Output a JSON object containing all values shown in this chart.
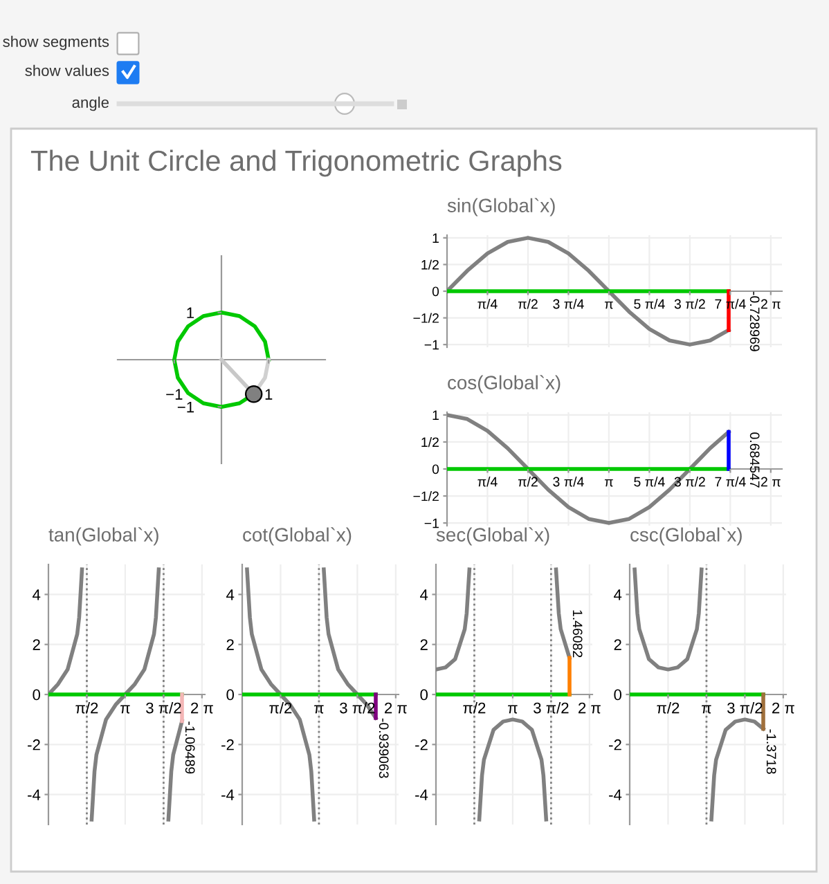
{
  "chart_data": [
    {
      "type": "other",
      "annotations": [
        "show segments",
        "show values",
        "angle"
      ]
    },
    {
      "type": "line",
      "title": "The Unit Circle and Trigonometric Graphs",
      "xlim": [
        -2.2,
        2.2
      ],
      "ylim": [
        -2.2,
        2.2
      ],
      "xticks": [
        {
          "value": -1,
          "label": "−1"
        },
        1
      ],
      "yticks": [
        {
          "value": -1,
          "label": "−1"
        },
        1
      ],
      "grid": false,
      "series": [
        {
          "color": "#00c800",
          "x": [
            1,
            0.924,
            0.707,
            0.383,
            0,
            -0.383,
            -0.707,
            -0.924,
            -1,
            -0.924,
            -0.707,
            -0.383,
            0,
            0.383,
            0.685
          ],
          "values": [
            0,
            0.383,
            0.707,
            0.924,
            1,
            0.924,
            0.707,
            0.383,
            0,
            -0.383,
            -0.707,
            -0.924,
            -1,
            -0.924,
            -0.729
          ]
        },
        {
          "color": "#d0d0d0",
          "x": [
            0.685,
            0.924,
            1
          ],
          "values": [
            -0.729,
            -0.383,
            0
          ]
        },
        {
          "color": "#c8c8c8",
          "x": [
            0,
            0.685
          ],
          "values": [
            0,
            -0.729
          ]
        },
        {
          "type": "scatter",
          "marker": "circle",
          "color": "#808080",
          "x": [
            0.685
          ],
          "values": [
            -0.729
          ]
        }
      ]
    },
    {
      "type": "line",
      "title": "sin(Global`x)",
      "xlim": [
        0,
        6.5
      ],
      "ylim": [
        -1.05,
        1.05
      ],
      "grid": true,
      "xticks": [
        {
          "value": 0.7854,
          "label": "π/4"
        },
        {
          "value": 1.5708,
          "label": "π/2"
        },
        {
          "value": 2.3562,
          "label": "3 π/4"
        },
        {
          "value": 3.1416,
          "label": "π"
        },
        {
          "value": 3.927,
          "label": "5 π/4"
        },
        {
          "value": 4.7124,
          "label": "3 π/2"
        },
        {
          "value": 5.4978,
          "label": "7 π/4"
        },
        {
          "value": 6.2832,
          "label": "2 π"
        }
      ],
      "yticks": [
        {
          "value": -1,
          "label": "−1"
        },
        {
          "value": -0.5,
          "label": "−1/2"
        },
        0,
        {
          "value": 0.5,
          "label": "1/2"
        },
        1
      ],
      "series": [
        {
          "color": "#808080",
          "x": [
            0,
            0.3927,
            0.7854,
            1.1781,
            1.5708,
            1.9635,
            2.3562,
            2.7489,
            3.1416,
            3.5343,
            3.927,
            4.3197,
            4.7124,
            5.1051,
            5.466
          ],
          "values": [
            0,
            0.383,
            0.707,
            0.924,
            1,
            0.924,
            0.707,
            0.383,
            0,
            -0.383,
            -0.707,
            -0.924,
            -1,
            -0.924,
            -0.729
          ]
        },
        {
          "color": "#00c800",
          "x": [
            0,
            5.466
          ],
          "values": [
            0,
            0
          ]
        },
        {
          "color": "#ff0000",
          "x": [
            5.466,
            5.466
          ],
          "values": [
            0,
            -0.728969
          ],
          "value_labels": [
            null,
            "-0.728969"
          ]
        }
      ]
    },
    {
      "type": "line",
      "title": "cos(Global`x)",
      "xlim": [
        0,
        6.5
      ],
      "ylim": [
        -1.05,
        1.05
      ],
      "grid": true,
      "xticks": [
        {
          "value": 0.7854,
          "label": "π/4"
        },
        {
          "value": 1.5708,
          "label": "π/2"
        },
        {
          "value": 2.3562,
          "label": "3 π/4"
        },
        {
          "value": 3.1416,
          "label": "π"
        },
        {
          "value": 3.927,
          "label": "5 π/4"
        },
        {
          "value": 4.7124,
          "label": "3 π/2"
        },
        {
          "value": 5.4978,
          "label": "7 π/4"
        },
        {
          "value": 6.2832,
          "label": "2 π"
        }
      ],
      "yticks": [
        {
          "value": -1,
          "label": "−1"
        },
        {
          "value": -0.5,
          "label": "−1/2"
        },
        0,
        {
          "value": 0.5,
          "label": "1/2"
        },
        1
      ],
      "series": [
        {
          "color": "#808080",
          "x": [
            0,
            0.3927,
            0.7854,
            1.1781,
            1.5708,
            1.9635,
            2.3562,
            2.7489,
            3.1416,
            3.5343,
            3.927,
            4.3197,
            4.7124,
            5.1051,
            5.466
          ],
          "values": [
            1,
            0.924,
            0.707,
            0.383,
            0,
            -0.383,
            -0.707,
            -0.924,
            -1,
            -0.924,
            -0.707,
            -0.383,
            0,
            0.383,
            0.685
          ]
        },
        {
          "color": "#00c800",
          "x": [
            0,
            5.466
          ],
          "values": [
            0,
            0
          ]
        },
        {
          "color": "#0000ff",
          "x": [
            5.466,
            5.466
          ],
          "values": [
            0,
            0.684547
          ],
          "value_labels": [
            null,
            "0.684547"
          ]
        }
      ]
    },
    {
      "type": "line",
      "title": "tan(Global`x)",
      "xlim": [
        0,
        6.4
      ],
      "ylim": [
        -5.2,
        5.2
      ],
      "grid": true,
      "xticks": [
        {
          "value": 1.5708,
          "label": "π/2"
        },
        {
          "value": 3.1416,
          "label": "π"
        },
        {
          "value": 4.7124,
          "label": "3 π/2"
        },
        {
          "value": 6.2832,
          "label": "2 π"
        }
      ],
      "yticks": [
        -4,
        -2,
        0,
        2,
        4
      ],
      "ref_lines": [
        {
          "axis": "x",
          "value": 1.5708,
          "color": "#808080",
          "line_style": "dotted"
        },
        {
          "axis": "x",
          "value": 4.7124,
          "color": "#808080",
          "line_style": "dotted"
        }
      ],
      "series": [
        {
          "color": "#808080",
          "x": [
            0,
            0.3927,
            0.7854,
            1.1781,
            1.2566,
            1.3734,
            1.5708,
            1.7682,
            1.885,
            1.9635,
            2.3562,
            2.7489,
            3.1416,
            3.5343,
            3.927,
            4.3197,
            4.398,
            4.515,
            4.7124,
            4.9098,
            5.027,
            5.1051,
            5.466
          ],
          "values": [
            0,
            0.414,
            1,
            2.414,
            3.078,
            5,
            null,
            -5,
            -3.078,
            -2.414,
            -1,
            -0.414,
            0,
            0.414,
            1,
            2.414,
            3.078,
            5,
            null,
            -5,
            -3.078,
            -2.414,
            -1.065
          ]
        },
        {
          "color": "#00c800",
          "x": [
            0,
            5.466
          ],
          "values": [
            0,
            0
          ]
        },
        {
          "color": "#f4b6b6",
          "x": [
            5.466,
            5.466
          ],
          "values": [
            0,
            -1.06489
          ],
          "value_labels": [
            null,
            "-1.06489"
          ]
        }
      ]
    },
    {
      "type": "line",
      "title": "cot(Global`x)",
      "xlim": [
        0,
        6.4
      ],
      "ylim": [
        -5.2,
        5.2
      ],
      "grid": true,
      "xticks": [
        {
          "value": 1.5708,
          "label": "π/2"
        },
        {
          "value": 3.1416,
          "label": "π"
        },
        {
          "value": 4.7124,
          "label": "3 π/2"
        },
        {
          "value": 6.2832,
          "label": "2 π"
        }
      ],
      "yticks": [
        -4,
        -2,
        0,
        2,
        4
      ],
      "ref_lines": [
        {
          "axis": "x",
          "value": 3.1416,
          "color": "#808080",
          "line_style": "dotted"
        }
      ],
      "series": [
        {
          "color": "#808080",
          "x": [
            0.1974,
            0.3142,
            0.3927,
            0.7854,
            1.1781,
            1.5708,
            1.9635,
            2.3562,
            2.7489,
            2.8274,
            2.9442,
            3.1416,
            3.339,
            3.4558,
            3.5343,
            3.927,
            4.3197,
            4.7124,
            5.1051,
            5.466
          ],
          "values": [
            5,
            3.078,
            2.414,
            1,
            0.414,
            0,
            -0.414,
            -1,
            -2.414,
            -3.078,
            -5,
            null,
            5,
            3.078,
            2.414,
            1,
            0.414,
            0,
            -0.414,
            -0.939
          ]
        },
        {
          "color": "#00c800",
          "x": [
            0,
            5.466
          ],
          "values": [
            0,
            0
          ]
        },
        {
          "color": "#800080",
          "x": [
            5.466,
            5.466
          ],
          "values": [
            0,
            -0.939063
          ],
          "value_labels": [
            null,
            "-0.939063"
          ]
        }
      ]
    },
    {
      "type": "line",
      "title": "sec(Global`x)",
      "xlim": [
        0,
        6.4
      ],
      "ylim": [
        -5.2,
        5.2
      ],
      "grid": true,
      "xticks": [
        {
          "value": 1.5708,
          "label": "π/2"
        },
        {
          "value": 3.1416,
          "label": "π"
        },
        {
          "value": 4.7124,
          "label": "3 π/2"
        },
        {
          "value": 6.2832,
          "label": "2 π"
        }
      ],
      "yticks": [
        -4,
        -2,
        0,
        2,
        4
      ],
      "ref_lines": [
        {
          "axis": "x",
          "value": 1.5708,
          "color": "#808080",
          "line_style": "dotted"
        },
        {
          "axis": "x",
          "value": 4.7124,
          "color": "#808080",
          "line_style": "dotted"
        }
      ],
      "series": [
        {
          "color": "#808080",
          "x": [
            0,
            0.3927,
            0.7854,
            1.1781,
            1.2566,
            1.3694,
            1.5708,
            1.7722,
            1.885,
            1.9635,
            2.3562,
            2.7489,
            3.1416,
            3.5343,
            3.927,
            4.3197,
            4.398,
            4.511,
            4.7124,
            4.9138,
            5.027,
            5.1051,
            5.466
          ],
          "values": [
            1,
            1.082,
            1.414,
            2.613,
            3.236,
            5,
            null,
            -5,
            -3.236,
            -2.613,
            -1.414,
            -1.082,
            -1,
            -1.082,
            -1.414,
            -2.613,
            -3.236,
            -5,
            null,
            5,
            3.236,
            2.613,
            1.461
          ]
        },
        {
          "color": "#00c800",
          "x": [
            0,
            5.466
          ],
          "values": [
            0,
            0
          ]
        },
        {
          "color": "#ff8000",
          "x": [
            5.466,
            5.466
          ],
          "values": [
            0,
            1.46082
          ],
          "value_labels": [
            null,
            "1.46082"
          ]
        }
      ]
    },
    {
      "type": "line",
      "title": "csc(Global`x)",
      "xlim": [
        0,
        6.4
      ],
      "ylim": [
        -5.2,
        5.2
      ],
      "grid": true,
      "xticks": [
        {
          "value": 1.5708,
          "label": "π/2"
        },
        {
          "value": 3.1416,
          "label": "π"
        },
        {
          "value": 4.7124,
          "label": "3 π/2"
        },
        {
          "value": 6.2832,
          "label": "2 π"
        }
      ],
      "yticks": [
        -4,
        -2,
        0,
        2,
        4
      ],
      "ref_lines": [
        {
          "axis": "x",
          "value": 3.1416,
          "color": "#808080",
          "line_style": "dotted"
        }
      ],
      "series": [
        {
          "color": "#808080",
          "x": [
            0.2014,
            0.3142,
            0.3927,
            0.7854,
            1.1781,
            1.5708,
            1.9635,
            2.3562,
            2.7489,
            2.8274,
            2.9402,
            3.1416,
            3.343,
            3.4558,
            3.5343,
            3.927,
            4.3197,
            4.7124,
            5.1051,
            5.466
          ],
          "values": [
            5,
            3.236,
            2.613,
            1.414,
            1.082,
            1,
            1.082,
            1.414,
            2.613,
            3.236,
            5,
            null,
            -5,
            -3.236,
            -2.613,
            -1.414,
            -1.082,
            -1,
            -1.082,
            -1.372
          ]
        },
        {
          "color": "#00c800",
          "x": [
            0,
            5.466
          ],
          "values": [
            0,
            0
          ]
        },
        {
          "color": "#a0703c",
          "x": [
            5.466,
            5.466
          ],
          "values": [
            0,
            -1.3718
          ],
          "value_labels": [
            null,
            "-1.3718"
          ]
        }
      ]
    }
  ]
}
